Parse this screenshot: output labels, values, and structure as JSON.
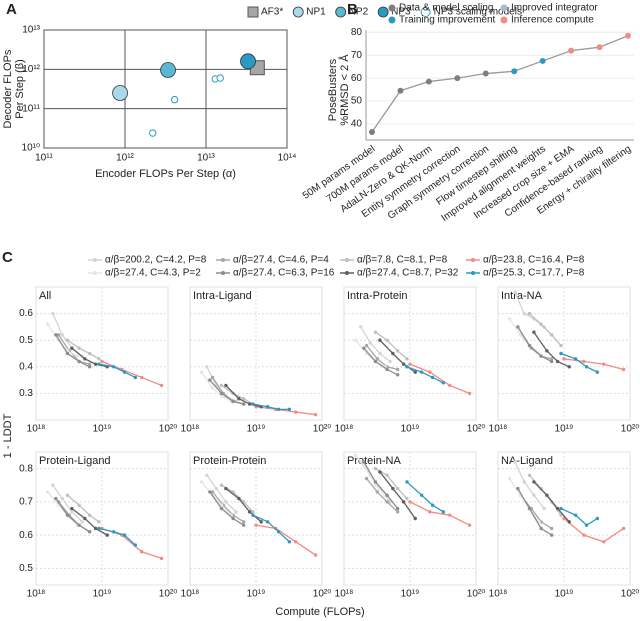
{
  "chart_data": [
    {
      "type": "scatter",
      "panel_label": "A",
      "xlabel": "Encoder FLOPs Per Step (α)",
      "ylabel": [
        "Decoder FLOPs",
        "Per Step (β)"
      ],
      "log_x": true,
      "log_y": true,
      "grid": true,
      "xlim": [
        100000000000.0,
        100000000000000.0
      ],
      "xticks": [
        {
          "value": 100000000000.0,
          "label": "10¹¹"
        },
        {
          "value": 1000000000000.0,
          "label": "10¹²"
        },
        {
          "value": 10000000000000.0,
          "label": "10¹³"
        },
        {
          "value": 100000000000000.0,
          "label": "10¹⁴"
        }
      ],
      "ylim": [
        10000000000.0,
        10000000000000.0
      ],
      "yticks": [
        {
          "value": 10000000000.0,
          "label": "10¹⁰"
        },
        {
          "value": 100000000000.0,
          "label": "10¹¹"
        },
        {
          "value": 1000000000000.0,
          "label": "10¹²"
        },
        {
          "value": 10000000000000.0,
          "label": "10¹³"
        }
      ],
      "series": [
        {
          "name": "AF3*",
          "color": "#a6a6a6",
          "marker": "square",
          "x": [
            43000000000000.0
          ],
          "values": [
            1100000000000.0
          ]
        },
        {
          "name": "NP1",
          "color": "#a8d8ea",
          "marker": "circle",
          "x": [
            870000000000.0
          ],
          "values": [
            250000000000.0
          ]
        },
        {
          "name": "NP2",
          "color": "#5bb8d2",
          "marker": "circle",
          "x": [
            3400000000000.0
          ],
          "values": [
            960000000000.0
          ]
        },
        {
          "name": "NP3",
          "color": "#2b9ac0",
          "marker": "circle",
          "x": [
            33000000000000.0
          ],
          "values": [
            1600000000000.0
          ]
        },
        {
          "name": "NP3 scaling models",
          "color": "#2b9ac0",
          "marker": "hollow",
          "x": [
            13000000000000.0,
            15000000000000.0,
            4100000000000.0,
            2200000000000.0
          ],
          "values": [
            570000000000.0,
            600000000000.0,
            170000000000.0,
            24000000000.0
          ]
        }
      ]
    },
    {
      "type": "line",
      "panel_label": "B",
      "ylabel": [
        "PoseBusters",
        "%RMSD < 2 Å"
      ],
      "categories": [
        "50M params model",
        "700M params model",
        "AdaLN-Zero & QK-Norm",
        "Entity symmetry correction",
        "Graph symmetry correction",
        "Flow timestep shifting",
        "Improved alignment weights",
        "Increased crop size + EMA",
        "Confidence-based ranking",
        "Energy + chirality filtering"
      ],
      "values": [
        36.5,
        54.5,
        58.5,
        60,
        62,
        63,
        67.5,
        72,
        73.5,
        78.5
      ],
      "groups": [
        {
          "name": "Data & model scaling",
          "color": "#7f7f7f"
        },
        {
          "name": "Improved integrator",
          "color": "#a9bccb"
        },
        {
          "name": "Training improvement",
          "color": "#2b9ac0"
        },
        {
          "name": "Inference compute",
          "color": "#f28b82"
        }
      ],
      "point_group": [
        0,
        0,
        0,
        0,
        0,
        2,
        2,
        3,
        3,
        3
      ],
      "line_color": "#9a9a9a",
      "ylim": [
        33,
        81
      ],
      "yticks": [
        40,
        50,
        60,
        70,
        80
      ],
      "grid": true
    },
    {
      "type": "line",
      "panel_label": "C",
      "xlabel": "Compute (FLOPs)",
      "ylabel": "1 - LDDT",
      "log_x": true,
      "xlim": [
        1e+18,
        1e+20
      ],
      "xticks": [
        {
          "value": 1e+18,
          "label": "10¹⁸"
        },
        {
          "value": 1e+19,
          "label": "10¹⁹"
        },
        {
          "value": 1e+20,
          "label": "10²⁰"
        }
      ],
      "series": [
        {
          "name": "α/β=200.2, C=4.2, P=8",
          "color": "#d4d4d4",
          "x": [
            1.8e+18,
            2.5e+18,
            3.5e+18,
            5e+18
          ]
        },
        {
          "name": "α/β=27.4, C=4.6, P=4",
          "color": "#a6a6a6",
          "x": [
            2.2e+18,
            3.2e+18,
            4.5e+18,
            6.5e+18
          ]
        },
        {
          "name": "α/β=7.8, C=8.1, P=8",
          "color": "#bfbfbf",
          "x": [
            3e+18,
            4.5e+18,
            6.5e+18,
            9e+18
          ]
        },
        {
          "name": "α/β=23.8, C=16.4, P=8",
          "color": "#f28b82",
          "x": [
            1e+19,
            2e+19,
            4e+19,
            8e+19
          ]
        },
        {
          "name": "α/β=27.4, C=4.3, P=2",
          "color": "#e6e6e6",
          "x": [
            1.5e+18,
            2.2e+18,
            3e+18,
            4.2e+18
          ]
        },
        {
          "name": "α/β=27.4, C=6.3, P=16",
          "color": "#8c8c8c",
          "x": [
            2e+18,
            3e+18,
            4.5e+18,
            6.5e+18
          ]
        },
        {
          "name": "α/β=27.4, C=8.7, P=32",
          "color": "#5f5f5f",
          "x": [
            3.5e+18,
            5.5e+18,
            8e+18,
            1.2e+19
          ]
        },
        {
          "name": "α/β=25.3, C=17.7, P=8",
          "color": "#2b9ac0",
          "x": [
            9e+18,
            1.5e+19,
            2.2e+19,
            3.2e+19
          ]
        }
      ],
      "panels": [
        {
          "title": "All",
          "ylim": [
            0.2,
            0.7
          ],
          "yticks": [
            0.3,
            0.4,
            0.5,
            0.6
          ],
          "values": [
            [
              0.6,
              0.52,
              0.47,
              0.44
            ],
            [
              0.52,
              0.46,
              0.42,
              0.41
            ],
            [
              0.5,
              0.47,
              0.45,
              0.43
            ],
            [
              0.42,
              0.39,
              0.36,
              0.33
            ],
            [
              0.56,
              0.5,
              0.46,
              0.44
            ],
            [
              0.52,
              0.45,
              0.42,
              0.4
            ],
            [
              0.47,
              0.43,
              0.41,
              0.4
            ],
            [
              0.41,
              0.4,
              0.38,
              0.36
            ]
          ]
        },
        {
          "title": "Intra-Ligand",
          "ylim": [
            0.2,
            0.7
          ],
          "yticks": [
            0.3,
            0.4,
            0.5,
            0.6
          ],
          "values": [
            [
              0.4,
              0.33,
              0.29,
              0.27
            ],
            [
              0.36,
              0.3,
              0.27,
              0.26
            ],
            [
              0.33,
              0.3,
              0.28,
              0.26
            ],
            [
              0.25,
              0.24,
              0.23,
              0.22
            ],
            [
              0.38,
              0.32,
              0.29,
              0.27
            ],
            [
              0.35,
              0.3,
              0.27,
              0.26
            ],
            [
              0.33,
              0.28,
              0.26,
              0.25
            ],
            [
              0.26,
              0.25,
              0.24,
              0.24
            ]
          ]
        },
        {
          "title": "Intra-Protein",
          "ylim": [
            0.2,
            0.7
          ],
          "yticks": [
            0.3,
            0.4,
            0.5,
            0.6
          ],
          "values": [
            [
              0.55,
              0.49,
              0.45,
              0.42
            ],
            [
              0.48,
              0.43,
              0.4,
              0.39
            ],
            [
              0.53,
              0.5,
              0.46,
              0.43
            ],
            [
              0.41,
              0.38,
              0.33,
              0.3
            ],
            [
              0.5,
              0.45,
              0.42,
              0.4
            ],
            [
              0.47,
              0.42,
              0.39,
              0.37
            ],
            [
              0.5,
              0.45,
              0.41,
              0.38
            ],
            [
              0.4,
              0.38,
              0.36,
              0.34
            ]
          ]
        },
        {
          "title": "Intra-NA",
          "ylim": [
            0.2,
            0.7
          ],
          "yticks": [
            0.3,
            0.4,
            0.5,
            0.6
          ],
          "values": [
            [
              0.68,
              0.6,
              0.58,
              0.55
            ],
            [
              0.52,
              0.47,
              0.44,
              0.43
            ],
            [
              0.6,
              0.56,
              0.52,
              0.48
            ],
            [
              0.43,
              0.42,
              0.41,
              0.39
            ],
            [
              0.58,
              0.52,
              0.48,
              0.45
            ],
            [
              0.55,
              0.48,
              0.44,
              0.42
            ],
            [
              0.53,
              0.46,
              0.42,
              0.4
            ],
            [
              0.45,
              0.43,
              0.4,
              0.38
            ]
          ]
        },
        {
          "title": "Protein-Ligand",
          "ylim": [
            0.45,
            0.85
          ],
          "yticks": [
            0.5,
            0.6,
            0.7,
            0.8
          ],
          "values": [
            [
              0.75,
              0.71,
              0.67,
              0.64
            ],
            [
              0.7,
              0.66,
              0.63,
              0.61
            ],
            [
              0.72,
              0.69,
              0.66,
              0.64
            ],
            [
              0.62,
              0.6,
              0.55,
              0.53
            ],
            [
              0.73,
              0.69,
              0.66,
              0.63
            ],
            [
              0.71,
              0.66,
              0.63,
              0.61
            ],
            [
              0.68,
              0.65,
              0.62,
              0.6
            ],
            [
              0.62,
              0.61,
              0.6,
              0.57
            ]
          ]
        },
        {
          "title": "Protein-Protein",
          "ylim": [
            0.45,
            0.85
          ],
          "yticks": [
            0.5,
            0.6,
            0.7,
            0.8
          ],
          "values": [
            [
              0.78,
              0.74,
              0.7,
              0.67
            ],
            [
              0.73,
              0.69,
              0.66,
              0.64
            ],
            [
              0.75,
              0.73,
              0.7,
              0.67
            ],
            [
              0.63,
              0.62,
              0.58,
              0.54
            ],
            [
              0.76,
              0.72,
              0.69,
              0.66
            ],
            [
              0.73,
              0.68,
              0.65,
              0.63
            ],
            [
              0.74,
              0.71,
              0.67,
              0.64
            ],
            [
              0.66,
              0.64,
              0.61,
              0.58
            ]
          ]
        },
        {
          "title": "Protein-NA",
          "ylim": [
            0.45,
            0.85
          ],
          "yticks": [
            0.5,
            0.6,
            0.7,
            0.8
          ],
          "values": [
            [
              0.82,
              0.78,
              0.74,
              0.7
            ],
            [
              0.77,
              0.73,
              0.7,
              0.67
            ],
            [
              0.8,
              0.78,
              0.74,
              0.71
            ],
            [
              0.7,
              0.67,
              0.66,
              0.63
            ],
            [
              0.84,
              0.8,
              0.75,
              0.72
            ],
            [
              0.82,
              0.76,
              0.72,
              0.68
            ],
            [
              0.79,
              0.74,
              0.7,
              0.65
            ],
            [
              0.76,
              0.72,
              0.69,
              0.67
            ]
          ]
        },
        {
          "title": "NA-Ligand",
          "ylim": [
            0.45,
            0.85
          ],
          "yticks": [
            0.5,
            0.6,
            0.7,
            0.8
          ],
          "values": [
            [
              0.82,
              0.76,
              0.72,
              0.68
            ],
            [
              0.72,
              0.68,
              0.64,
              0.62
            ],
            [
              0.78,
              0.74,
              0.7,
              0.66
            ],
            [
              0.65,
              0.6,
              0.58,
              0.62
            ],
            [
              0.77,
              0.72,
              0.68,
              0.64
            ],
            [
              0.74,
              0.68,
              0.62,
              0.6
            ],
            [
              0.76,
              0.72,
              0.68,
              0.64
            ],
            [
              0.68,
              0.66,
              0.63,
              0.65
            ]
          ]
        }
      ]
    }
  ]
}
